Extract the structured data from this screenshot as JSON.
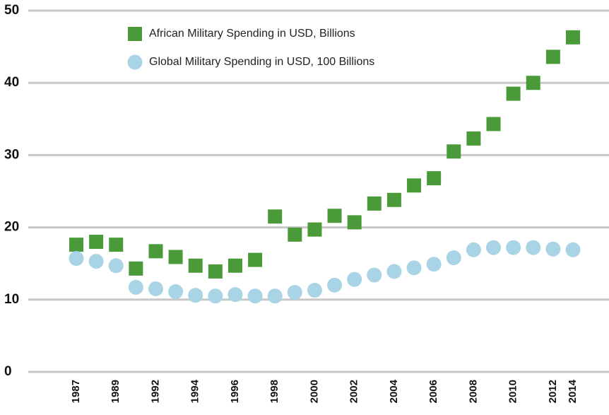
{
  "chart_data": {
    "type": "scatter",
    "categories": [
      "1987",
      null,
      "1989",
      null,
      "1992",
      null,
      "1994",
      null,
      "1996",
      null,
      "1998",
      null,
      "2000",
      null,
      "2002",
      null,
      "2004",
      null,
      "2006",
      null,
      "2008",
      null,
      "2010",
      null,
      "2012",
      "2014"
    ],
    "series": [
      {
        "name": "African Military Spending in USD, Billions",
        "color": "#4a9a3a",
        "marker": "square",
        "values": [
          17.6,
          18,
          17.6,
          14.3,
          16.7,
          15.9,
          14.7,
          13.9,
          14.7,
          15.5,
          21.5,
          19,
          19.7,
          21.6,
          20.7,
          23.3,
          23.8,
          25.8,
          26.8,
          30.5,
          32.3,
          34.3,
          38.5,
          40,
          43.6,
          46.3
        ]
      },
      {
        "name": "Global Military Spending in USD, 100 Billions",
        "color": "#a8d4e6",
        "marker": "circle",
        "values": [
          15.7,
          15.3,
          14.7,
          11.7,
          11.5,
          11.1,
          10.6,
          10.5,
          10.7,
          10.5,
          10.5,
          11,
          11.3,
          12,
          12.8,
          13.4,
          13.9,
          14.4,
          14.9,
          15.8,
          16.9,
          17.2,
          17.2,
          17.2,
          17,
          16.9
        ]
      }
    ],
    "ylim": [
      0,
      50
    ],
    "yticks": [
      0,
      10,
      20,
      30,
      40,
      50
    ],
    "grid": true
  }
}
